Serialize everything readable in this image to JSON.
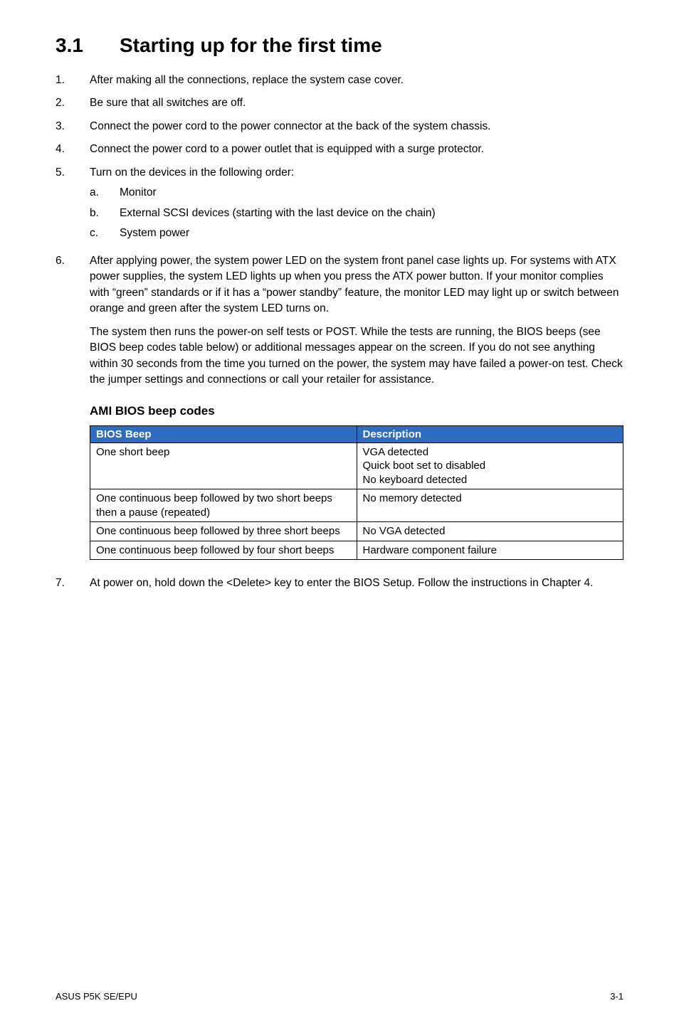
{
  "heading": {
    "number": "3.1",
    "title": "Starting up for the first time"
  },
  "steps": [
    "After making all the connections, replace the system case cover.",
    "Be sure that all switches are off.",
    "Connect the power cord to the power connector at the back of the system chassis.",
    "Connect the power cord to a power outlet that is equipped with a surge protector.",
    "Turn on the devices in the following order:",
    "After applying power, the system power LED on the system front panel case lights up. For systems with ATX power supplies, the system LED lights up when you press the ATX power button. If your monitor complies with “green” standards or if it has a “power standby” feature, the monitor LED may light up or switch between orange and green after the system LED turns on."
  ],
  "substeps_5": [
    "Monitor",
    "External SCSI devices (starting with the last device on the chain)",
    "System power"
  ],
  "post_6_para": "The system then runs the power-on self tests or POST. While the tests are running, the BIOS beeps (see BIOS beep codes table below) or additional messages appear on the screen. If you do not see anything within 30 seconds from the time you turned on the power, the system may have failed a power-on test. Check the jumper settings and connections or call your retailer for assistance.",
  "beep_heading": "AMI BIOS beep codes",
  "beep_table": {
    "header_bg": "#2e6cc0",
    "header_color": "#ffffff",
    "col_widths": [
      "50%",
      "50%"
    ],
    "columns": [
      "BIOS Beep",
      "Description"
    ],
    "rows": [
      [
        "One short beep",
        "VGA detected\nQuick boot set to disabled\nNo keyboard detected"
      ],
      [
        "One continuous beep followed by two short beeps then a pause (repeated)",
        "No memory detected"
      ],
      [
        "One continuous beep followed by three short beeps",
        "No VGA detected"
      ],
      [
        "One continuous beep followed by four short beeps",
        "Hardware component failure"
      ]
    ]
  },
  "step7": "At power on, hold down the <Delete> key to enter the BIOS Setup. Follow the instructions in Chapter 4.",
  "footer": {
    "left": "ASUS P5K SE/EPU",
    "right": "3-1"
  }
}
